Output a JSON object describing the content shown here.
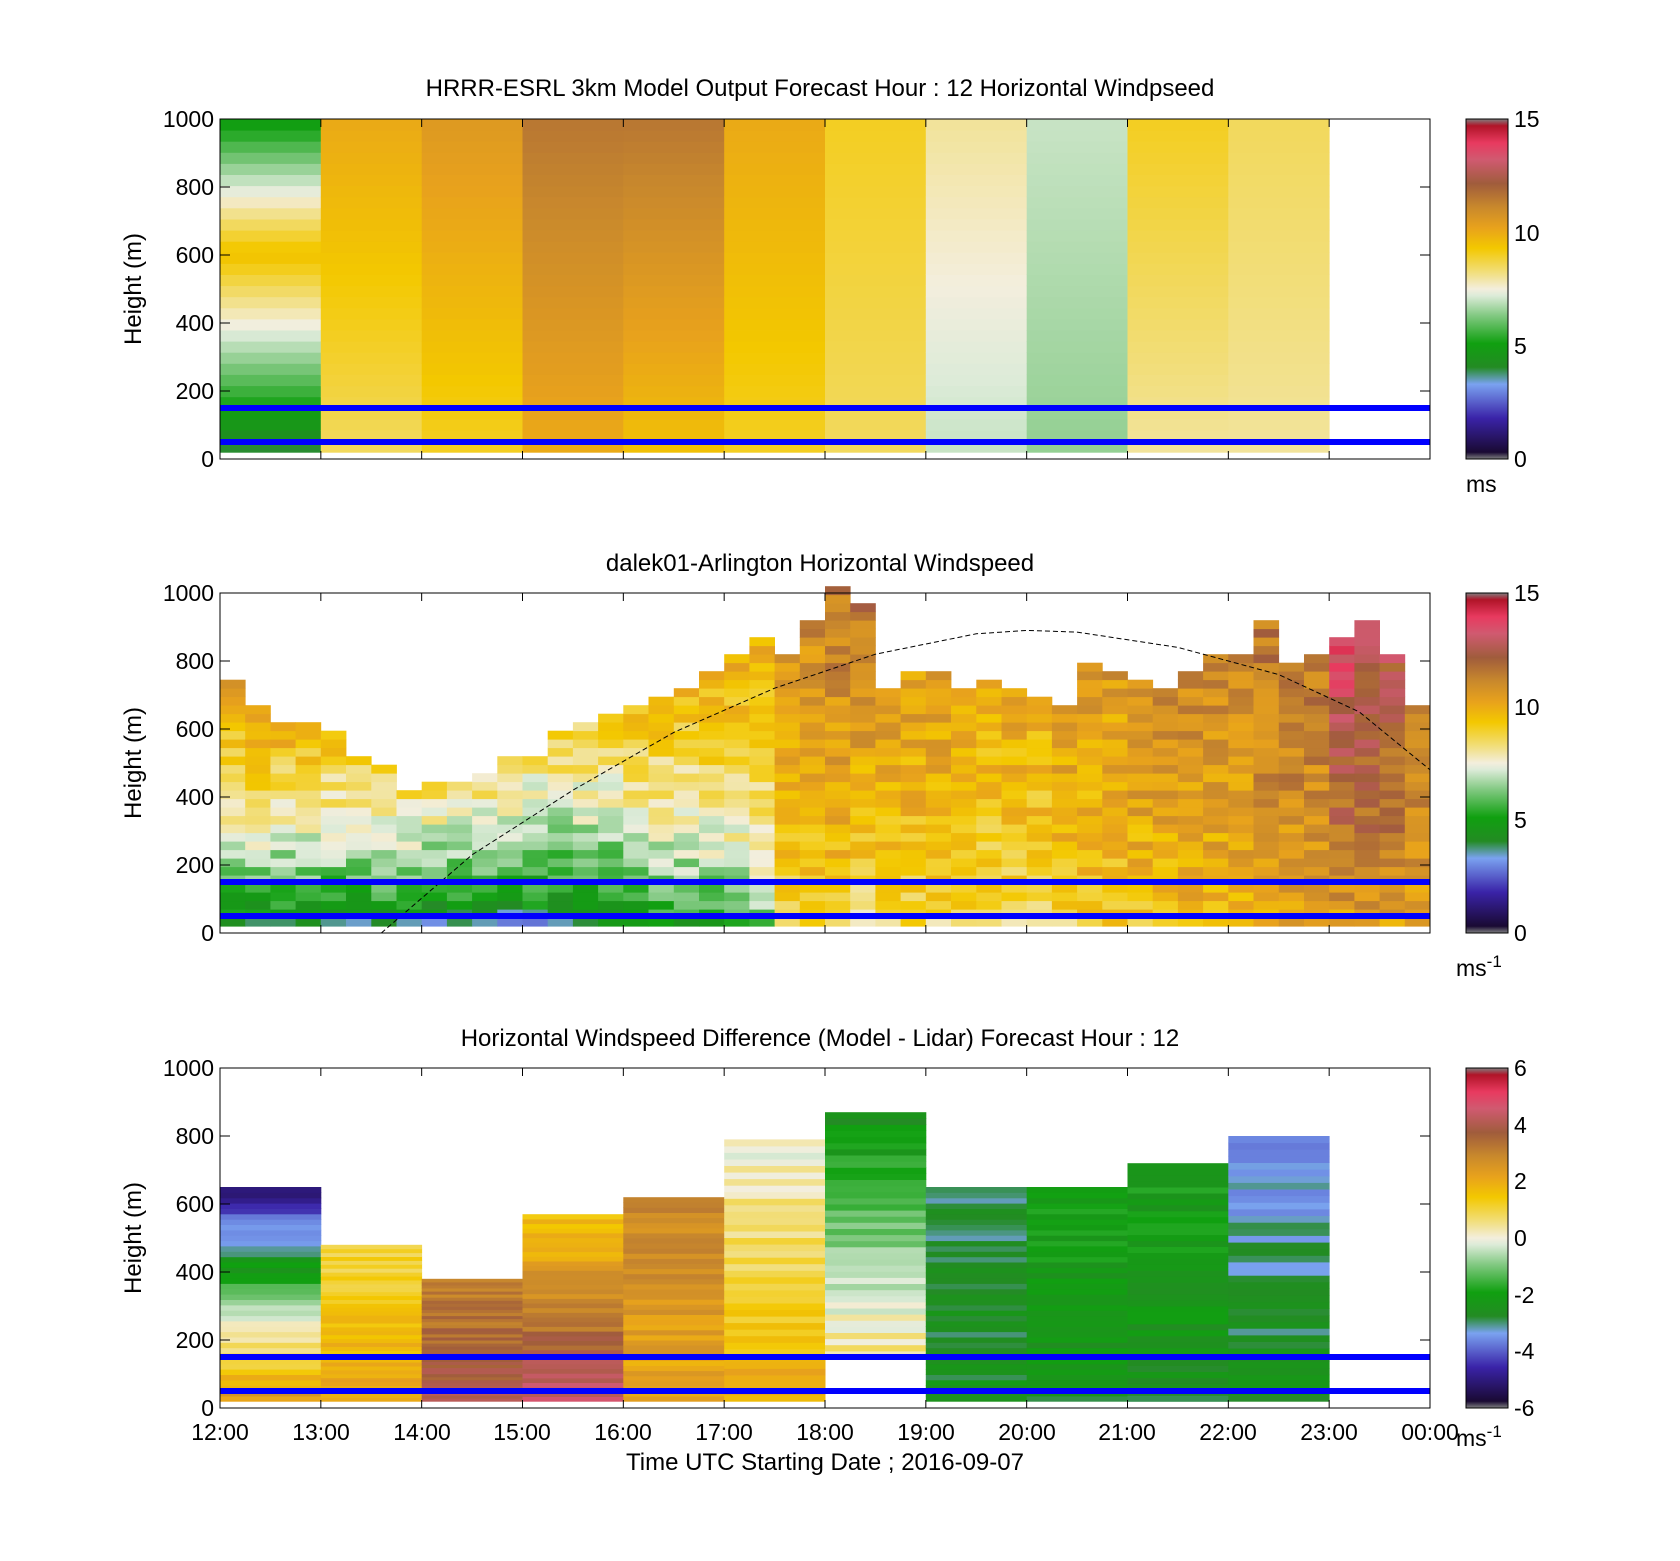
{
  "figure": {
    "x_ticks": [
      "12:00",
      "13:00",
      "14:00",
      "15:00",
      "16:00",
      "17:00",
      "18:00",
      "19:00",
      "20:00",
      "21:00",
      "22:00",
      "23:00",
      "00:00"
    ],
    "x_label": "Time UTC  Starting Date ; 2016-09-07",
    "y_ticks": [
      "0",
      "200",
      "400",
      "600",
      "800",
      "1000"
    ],
    "y_label": "Height (m)",
    "line_color": "#0000ff"
  },
  "chart_data": [
    {
      "type": "heatmap",
      "title": "HRRR-ESRL 3km Model Output   Forecast Hour : 12 Horizontal Windpseed",
      "ylabel": "Height (m)",
      "xlim": [
        12,
        24
      ],
      "ylim": [
        0,
        1000
      ],
      "colorbar": {
        "range": [
          0,
          15
        ],
        "ticks": [
          "0",
          "5",
          "10",
          "15"
        ],
        "unit": "ms"
      },
      "reference_heights_m": [
        50,
        150
      ],
      "columns": [
        {
          "hour": 12,
          "bottom": 20,
          "top": 1000,
          "speed_bottom": 4,
          "speed_top": 5,
          "mid_speed": 9.5
        },
        {
          "hour": 13,
          "bottom": 20,
          "top": 1000,
          "speed_bottom": 8.5,
          "speed_top": 10
        },
        {
          "hour": 14,
          "bottom": 20,
          "top": 1000,
          "speed_bottom": 9,
          "speed_top": 10.5
        },
        {
          "hour": 15,
          "bottom": 20,
          "top": 1000,
          "speed_bottom": 10,
          "speed_top": 11.5
        },
        {
          "hour": 16,
          "bottom": 20,
          "top": 1000,
          "speed_bottom": 9.5,
          "speed_top": 11.5
        },
        {
          "hour": 17,
          "bottom": 20,
          "top": 1000,
          "speed_bottom": 9,
          "speed_top": 10
        },
        {
          "hour": 18,
          "bottom": 20,
          "top": 1000,
          "speed_bottom": 8.5,
          "speed_top": 9
        },
        {
          "hour": 19,
          "bottom": 20,
          "top": 1000,
          "speed_bottom": 7,
          "speed_top": 8
        },
        {
          "hour": 20,
          "bottom": 20,
          "top": 1000,
          "speed_bottom": 6.5,
          "speed_top": 7
        },
        {
          "hour": 21,
          "bottom": 20,
          "top": 1000,
          "speed_bottom": 8,
          "speed_top": 9
        },
        {
          "hour": 22,
          "bottom": 20,
          "top": 1000,
          "speed_bottom": 8,
          "speed_top": 8.5
        }
      ]
    },
    {
      "type": "heatmap",
      "title": "dalek01-Arlington  Horizontal Windspeed",
      "ylabel": "Height (m)",
      "xlim": [
        12,
        24
      ],
      "ylim": [
        0,
        1000
      ],
      "colorbar": {
        "range": [
          0,
          15
        ],
        "ticks": [
          "0",
          "5",
          "10",
          "15"
        ],
        "unit": "ms-1"
      },
      "reference_heights_m": [
        50,
        150
      ],
      "boundary_layer_curve": {
        "style": "dashed",
        "x_hours": [
          13.6,
          14.5,
          15.5,
          16.5,
          17.5,
          18.5,
          19.5,
          20,
          20.5,
          21.5,
          22.5,
          23.3,
          24
        ],
        "heights_m": [
          0,
          230,
          420,
          590,
          720,
          820,
          880,
          890,
          885,
          840,
          760,
          650,
          480
        ]
      },
      "columns": [
        {
          "hour": 12.0,
          "top": 730,
          "speed_low": 4,
          "speed_high": 10.5
        },
        {
          "hour": 12.25,
          "top": 650,
          "speed_low": 4,
          "speed_high": 10.5
        },
        {
          "hour": 12.5,
          "top": 620,
          "speed_low": 4,
          "speed_high": 10
        },
        {
          "hour": 12.75,
          "top": 620,
          "speed_low": 4,
          "speed_high": 10
        },
        {
          "hour": 13.0,
          "top": 580,
          "speed_low": 4,
          "speed_high": 9.5
        },
        {
          "hour": 13.25,
          "top": 520,
          "speed_low": 4,
          "speed_high": 9
        },
        {
          "hour": 13.5,
          "top": 480,
          "speed_low": 4,
          "speed_high": 9
        },
        {
          "hour": 13.75,
          "top": 420,
          "speed_low": 4,
          "speed_high": 8.5
        },
        {
          "hour": 14.0,
          "top": 430,
          "speed_low": 3.5,
          "speed_high": 8.5
        },
        {
          "hour": 14.25,
          "top": 440,
          "speed_low": 3.5,
          "speed_high": 8.5
        },
        {
          "hour": 14.5,
          "top": 460,
          "speed_low": 3.5,
          "speed_high": 8.5
        },
        {
          "hour": 14.75,
          "top": 500,
          "speed_low": 3.5,
          "speed_high": 8.5
        },
        {
          "hour": 15.0,
          "top": 520,
          "speed_low": 3.5,
          "speed_high": 8.5
        },
        {
          "hour": 15.25,
          "top": 590,
          "speed_low": 3.5,
          "speed_high": 9
        },
        {
          "hour": 15.5,
          "top": 620,
          "speed_low": 4,
          "speed_high": 9
        },
        {
          "hour": 15.75,
          "top": 640,
          "speed_low": 4,
          "speed_high": 9
        },
        {
          "hour": 16.0,
          "top": 650,
          "speed_low": 4.5,
          "speed_high": 9.5
        },
        {
          "hour": 16.25,
          "top": 680,
          "speed_low": 5,
          "speed_high": 9.5
        },
        {
          "hour": 16.5,
          "top": 700,
          "speed_low": 5,
          "speed_high": 9.5
        },
        {
          "hour": 16.75,
          "top": 760,
          "speed_low": 5,
          "speed_high": 10
        },
        {
          "hour": 17.0,
          "top": 800,
          "speed_low": 5.5,
          "speed_high": 10
        },
        {
          "hour": 17.25,
          "top": 850,
          "speed_low": 6,
          "speed_high": 10
        },
        {
          "hour": 17.5,
          "top": 800,
          "speed_low": 8.5,
          "speed_high": 10.5
        },
        {
          "hour": 17.75,
          "top": 900,
          "speed_low": 8.5,
          "speed_high": 11
        },
        {
          "hour": 18.0,
          "top": 1000,
          "speed_low": 8.5,
          "speed_high": 11.5
        },
        {
          "hour": 18.25,
          "top": 960,
          "speed_low": 8,
          "speed_high": 11.5
        },
        {
          "hour": 18.5,
          "top": 720,
          "speed_low": 8.5,
          "speed_high": 10.5
        },
        {
          "hour": 18.75,
          "top": 750,
          "speed_low": 8.5,
          "speed_high": 10.5
        },
        {
          "hour": 19.0,
          "top": 760,
          "speed_low": 8.5,
          "speed_high": 10.5
        },
        {
          "hour": 19.25,
          "top": 720,
          "speed_low": 8.5,
          "speed_high": 10
        },
        {
          "hour": 19.5,
          "top": 740,
          "speed_low": 8.5,
          "speed_high": 10
        },
        {
          "hour": 19.75,
          "top": 700,
          "speed_low": 8.5,
          "speed_high": 10
        },
        {
          "hour": 20.0,
          "top": 690,
          "speed_low": 8.5,
          "speed_high": 10
        },
        {
          "hour": 20.25,
          "top": 660,
          "speed_low": 8.5,
          "speed_high": 10.5
        },
        {
          "hour": 20.5,
          "top": 780,
          "speed_low": 9,
          "speed_high": 10.5
        },
        {
          "hour": 20.75,
          "top": 750,
          "speed_low": 9,
          "speed_high": 10.5
        },
        {
          "hour": 21.0,
          "top": 740,
          "speed_low": 9,
          "speed_high": 11
        },
        {
          "hour": 21.25,
          "top": 700,
          "speed_low": 9,
          "speed_high": 11
        },
        {
          "hour": 21.5,
          "top": 760,
          "speed_low": 9.5,
          "speed_high": 11
        },
        {
          "hour": 21.75,
          "top": 820,
          "speed_low": 9.5,
          "speed_high": 11
        },
        {
          "hour": 22.0,
          "top": 800,
          "speed_low": 9.5,
          "speed_high": 11
        },
        {
          "hour": 22.25,
          "top": 900,
          "speed_low": 10,
          "speed_high": 11.5
        },
        {
          "hour": 22.5,
          "top": 780,
          "speed_low": 10,
          "speed_high": 11.5
        },
        {
          "hour": 22.75,
          "top": 800,
          "speed_low": 10,
          "speed_high": 11.5
        },
        {
          "hour": 23.0,
          "top": 860,
          "speed_low": 10,
          "speed_high": 13.5
        },
        {
          "hour": 23.25,
          "top": 900,
          "speed_low": 10.5,
          "speed_high": 13
        },
        {
          "hour": 23.5,
          "top": 800,
          "speed_low": 10.5,
          "speed_high": 12.5
        },
        {
          "hour": 23.75,
          "top": 650,
          "speed_low": 10,
          "speed_high": 11.5
        }
      ]
    },
    {
      "type": "heatmap",
      "title": "Horizontal Windspeed Difference (Model - Lidar) Forecast Hour : 12",
      "ylabel": "Height (m)",
      "xlabel": "Time UTC  Starting Date ; 2016-09-07",
      "xlim": [
        12,
        24
      ],
      "ylim": [
        0,
        1000
      ],
      "colorbar": {
        "range": [
          -6,
          6
        ],
        "ticks": [
          "-6",
          "-4",
          "-2",
          "0",
          "2",
          "4",
          "6"
        ],
        "unit": "ms-1"
      },
      "reference_heights_m": [
        50,
        150
      ],
      "columns": [
        {
          "hour": 12,
          "bottom": 20,
          "top": 650,
          "diff_bottom": 2.5,
          "diff_top": -5
        },
        {
          "hour": 13,
          "bottom": 20,
          "top": 480,
          "diff_bottom": 2,
          "diff_top": 1
        },
        {
          "hour": 14,
          "bottom": 20,
          "top": 380,
          "diff_bottom": 4,
          "diff_top": 3
        },
        {
          "hour": 15,
          "bottom": 20,
          "top": 570,
          "diff_bottom": 4.5,
          "diff_top": 1.5
        },
        {
          "hour": 16,
          "bottom": 20,
          "top": 620,
          "diff_bottom": 2,
          "diff_top": 3
        },
        {
          "hour": 17,
          "bottom": 20,
          "top": 790,
          "diff_bottom": 2,
          "diff_top": 0
        },
        {
          "hour": 18,
          "bottom": 150,
          "top": 870,
          "diff_bottom": 0.5,
          "diff_top": -2.5
        },
        {
          "hour": 19,
          "bottom": 20,
          "top": 650,
          "diff_bottom": -2.5,
          "diff_top": -3
        },
        {
          "hour": 20,
          "bottom": 20,
          "top": 650,
          "diff_bottom": -2.5,
          "diff_top": -2
        },
        {
          "hour": 21,
          "bottom": 20,
          "top": 720,
          "diff_bottom": -2.5,
          "diff_top": -2
        },
        {
          "hour": 22,
          "bottom": 20,
          "top": 800,
          "diff_bottom": -2.5,
          "diff_top": -3.5
        }
      ]
    }
  ]
}
